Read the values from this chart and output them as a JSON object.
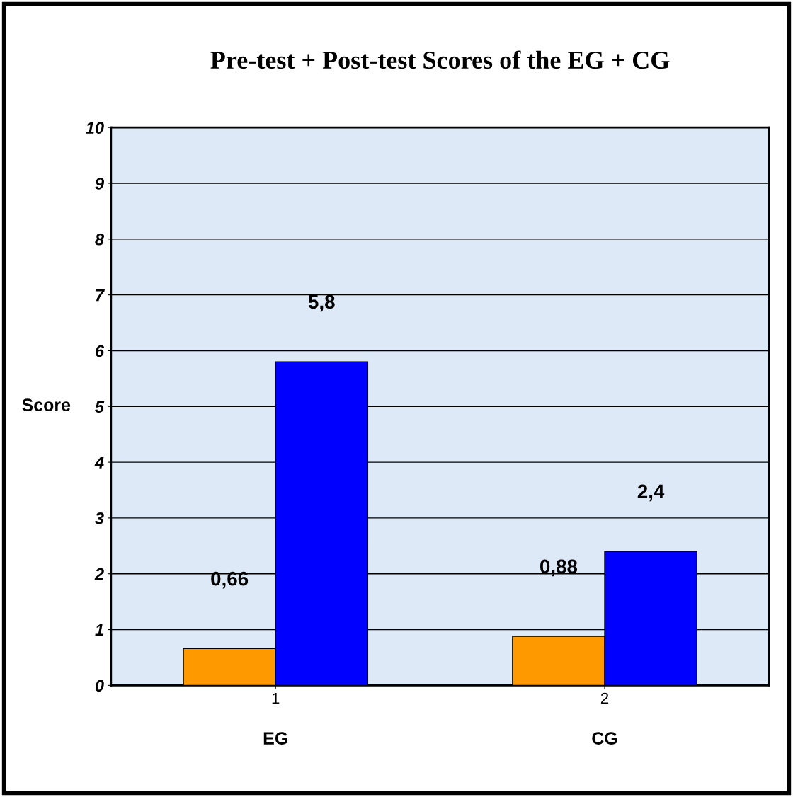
{
  "chart_data": {
    "type": "bar",
    "title": "Pre-test + Post-test Scores of the EG + CG",
    "ylabel": "Score",
    "categories": [
      "1",
      "2"
    ],
    "series": [
      {
        "color": "#ff9900",
        "values": [
          0.66,
          0.88
        ],
        "value_labels": [
          "0,66",
          "0,88"
        ]
      },
      {
        "color": "#0000ff",
        "values": [
          5.8,
          2.4
        ],
        "value_labels": [
          "5,8",
          "2,4"
        ]
      }
    ],
    "annotations": [
      "EG",
      "CG"
    ],
    "ylim": [
      0,
      10
    ],
    "yticks": [
      0,
      1,
      2,
      3,
      4,
      5,
      6,
      7,
      8,
      9,
      10
    ],
    "grid": "y",
    "legend": false
  }
}
